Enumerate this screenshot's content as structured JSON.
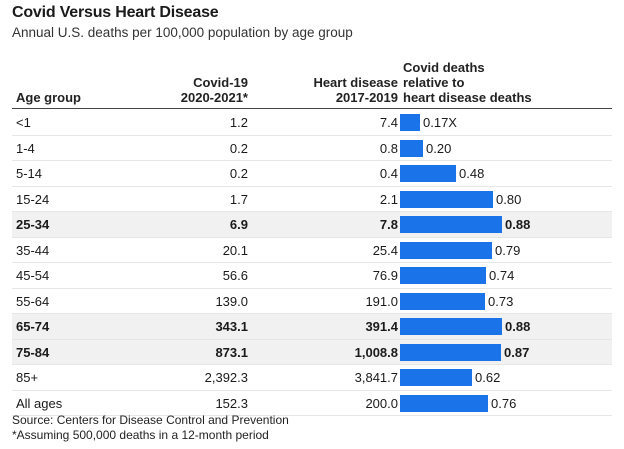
{
  "title": "Covid Versus Heart Disease",
  "subtitle": "Annual U.S. deaths per 100,000 population by age group",
  "columns": {
    "age": "Age group",
    "covid": [
      "Covid-19",
      "2020-2021*"
    ],
    "heart": [
      "Heart disease",
      "2017-2019"
    ],
    "ratio": [
      "Covid deaths",
      "relative to",
      "heart disease deaths"
    ]
  },
  "chart_data": {
    "type": "table",
    "bar_color": "#1a73e8",
    "highlight_color": "#f1f1f1",
    "rows": [
      {
        "age": "<1",
        "covid": "1.2",
        "heart": "7.4",
        "ratio": 0.17,
        "ratio_label": "0.17X",
        "highlight": false
      },
      {
        "age": "1-4",
        "covid": "0.2",
        "heart": "0.8",
        "ratio": 0.2,
        "ratio_label": "0.20",
        "highlight": false
      },
      {
        "age": "5-14",
        "covid": "0.2",
        "heart": "0.4",
        "ratio": 0.48,
        "ratio_label": "0.48",
        "highlight": false
      },
      {
        "age": "15-24",
        "covid": "1.7",
        "heart": "2.1",
        "ratio": 0.8,
        "ratio_label": "0.80",
        "highlight": false
      },
      {
        "age": "25-34",
        "covid": "6.9",
        "heart": "7.8",
        "ratio": 0.88,
        "ratio_label": "0.88",
        "highlight": true
      },
      {
        "age": "35-44",
        "covid": "20.1",
        "heart": "25.4",
        "ratio": 0.79,
        "ratio_label": "0.79",
        "highlight": false
      },
      {
        "age": "45-54",
        "covid": "56.6",
        "heart": "76.9",
        "ratio": 0.74,
        "ratio_label": "0.74",
        "highlight": false
      },
      {
        "age": "55-64",
        "covid": "139.0",
        "heart": "191.0",
        "ratio": 0.73,
        "ratio_label": "0.73",
        "highlight": false
      },
      {
        "age": "65-74",
        "covid": "343.1",
        "heart": "391.4",
        "ratio": 0.88,
        "ratio_label": "0.88",
        "highlight": true
      },
      {
        "age": "75-84",
        "covid": "873.1",
        "heart": "1,008.8",
        "ratio": 0.87,
        "ratio_label": "0.87",
        "highlight": true
      },
      {
        "age": "85+",
        "covid": "2,392.3",
        "heart": "3,841.7",
        "ratio": 0.62,
        "ratio_label": "0.62",
        "highlight": false
      },
      {
        "age": "All ages",
        "covid": "152.3",
        "heart": "200.0",
        "ratio": 0.76,
        "ratio_label": "0.76",
        "highlight": false
      }
    ]
  },
  "source": "Source: Centers for Disease Control and Prevention",
  "footnote": "*Assuming 500,000 deaths in a 12-month period"
}
